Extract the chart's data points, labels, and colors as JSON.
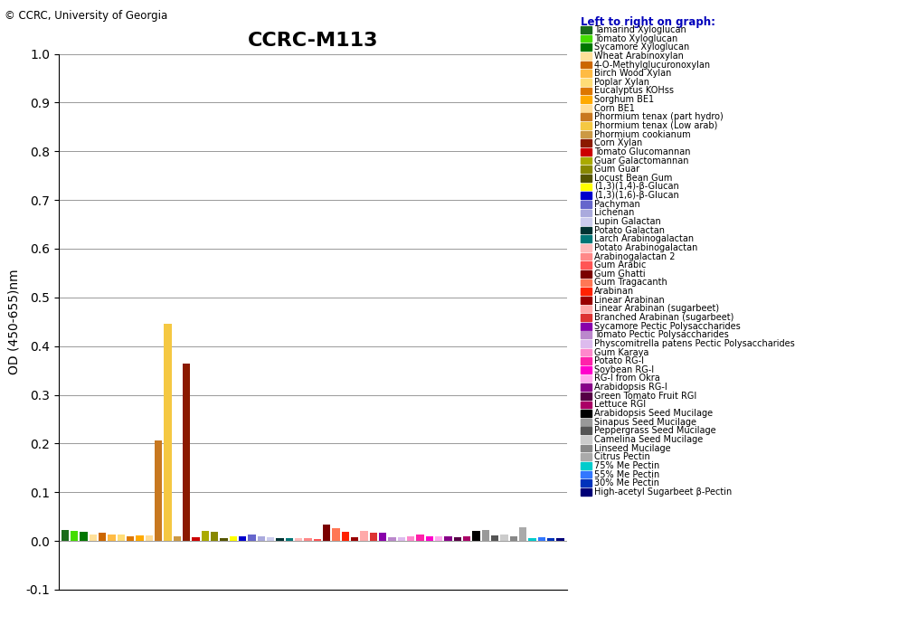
{
  "title": "CCRC-M113",
  "copyright": "© CCRC, University of Georgia",
  "ylabel": "OD (450-655)nm",
  "legend_title": "Left to right on graph:",
  "ylim": [
    -0.1,
    1.0
  ],
  "yticks": [
    -0.1,
    0.0,
    0.1,
    0.2,
    0.3,
    0.4,
    0.5,
    0.6,
    0.7,
    0.8,
    0.9,
    1.0
  ],
  "bars": [
    {
      "label": "Tamarind Xyloglucan",
      "value": 0.022,
      "color": "#1a6b1a"
    },
    {
      "label": "Tomato Xyloglucan",
      "value": 0.02,
      "color": "#44dd00"
    },
    {
      "label": "Sycamore Xyloglucan",
      "value": 0.018,
      "color": "#007700"
    },
    {
      "label": "Wheat Arabinoxylan",
      "value": 0.013,
      "color": "#ffe099"
    },
    {
      "label": "4-O-Methylglucuronoxylan",
      "value": 0.016,
      "color": "#cc6600"
    },
    {
      "label": "Birch Wood Xylan",
      "value": 0.013,
      "color": "#ffbb44"
    },
    {
      "label": "Poplar Xylan",
      "value": 0.013,
      "color": "#ffdd77"
    },
    {
      "label": "Eucalyptus KOHss",
      "value": 0.01,
      "color": "#dd7700"
    },
    {
      "label": "Sorghum BE1",
      "value": 0.012,
      "color": "#ffaa00"
    },
    {
      "label": "Corn BE1",
      "value": 0.011,
      "color": "#ffdd99"
    },
    {
      "label": "Phormium tenax (part hydro)",
      "value": 0.207,
      "color": "#c87820"
    },
    {
      "label": "Phormium tenax (Low arab)",
      "value": 0.446,
      "color": "#f5c842"
    },
    {
      "label": "Phormium cookianum",
      "value": 0.01,
      "color": "#cc9944"
    },
    {
      "label": "Corn Xylan",
      "value": 0.365,
      "color": "#8b1a00"
    },
    {
      "label": "Tomato Glucomannan",
      "value": 0.008,
      "color": "#cc0000"
    },
    {
      "label": "Guar Galactomannan",
      "value": 0.02,
      "color": "#aaaa00"
    },
    {
      "label": "Gum Guar",
      "value": 0.018,
      "color": "#888800"
    },
    {
      "label": "Locust Bean Gum",
      "value": 0.005,
      "color": "#555500"
    },
    {
      "label": "(1,3)(1,4)-β-Glucan",
      "value": 0.01,
      "color": "#ffff00"
    },
    {
      "label": "(1,3)(1,6)-β-Glucan",
      "value": 0.01,
      "color": "#0000cc"
    },
    {
      "label": "Pachyman",
      "value": 0.013,
      "color": "#6666cc"
    },
    {
      "label": "Lichenan",
      "value": 0.01,
      "color": "#aaaadd"
    },
    {
      "label": "Lupin Galactan",
      "value": 0.008,
      "color": "#ccccee"
    },
    {
      "label": "Potato Galactan",
      "value": 0.005,
      "color": "#003333"
    },
    {
      "label": "Larch Arabinogalactan",
      "value": 0.006,
      "color": "#007777"
    },
    {
      "label": "Potato Arabinogalactan",
      "value": 0.005,
      "color": "#ffbbbb"
    },
    {
      "label": "Arabinogalactan 2",
      "value": 0.005,
      "color": "#ff8888"
    },
    {
      "label": "Gum Arabic",
      "value": 0.004,
      "color": "#ff5555"
    },
    {
      "label": "Gum Ghatti",
      "value": 0.034,
      "color": "#7b0000"
    },
    {
      "label": "Gum Tragacanth",
      "value": 0.027,
      "color": "#ff7755"
    },
    {
      "label": "Arabinan",
      "value": 0.019,
      "color": "#ff2200"
    },
    {
      "label": "Linear Arabinan",
      "value": 0.008,
      "color": "#990000"
    },
    {
      "label": "Linear Arabinan (sugarbeet)",
      "value": 0.02,
      "color": "#ffaaaa"
    },
    {
      "label": "Branched Arabinan (sugarbeet)",
      "value": 0.017,
      "color": "#dd3333"
    },
    {
      "label": "Sycamore Pectic Polysaccharides",
      "value": 0.016,
      "color": "#8800aa"
    },
    {
      "label": "Tomato Pectic Polysaccharides",
      "value": 0.008,
      "color": "#bb88cc"
    },
    {
      "label": "Physcomitrella patens Pectic Polysaccharides",
      "value": 0.008,
      "color": "#ddbbee"
    },
    {
      "label": "Gum Karaya",
      "value": 0.01,
      "color": "#ff88cc"
    },
    {
      "label": "Potato RG-I",
      "value": 0.014,
      "color": "#ff22aa"
    },
    {
      "label": "Soybean RG-I",
      "value": 0.009,
      "color": "#ff00cc"
    },
    {
      "label": "RG-I from Okra",
      "value": 0.01,
      "color": "#ffaaee"
    },
    {
      "label": "Arabidopsis RG-I",
      "value": 0.01,
      "color": "#880088"
    },
    {
      "label": "Green Tomato Fruit RGI",
      "value": 0.007,
      "color": "#550044"
    },
    {
      "label": "Lettuce RGI",
      "value": 0.01,
      "color": "#aa0066"
    },
    {
      "label": "Arabidopsis Seed Mucilage",
      "value": 0.021,
      "color": "#000000"
    },
    {
      "label": "Sinapus Seed Mucilage",
      "value": 0.022,
      "color": "#999999"
    },
    {
      "label": "Peppergrass Seed Mucilage",
      "value": 0.012,
      "color": "#555555"
    },
    {
      "label": "Camelina Seed Mucilage",
      "value": 0.013,
      "color": "#cccccc"
    },
    {
      "label": "Linseed Mucilage",
      "value": 0.01,
      "color": "#888888"
    },
    {
      "label": "Citrus Pectin",
      "value": 0.028,
      "color": "#aaaaaa"
    },
    {
      "label": "75% Me Pectin",
      "value": 0.005,
      "color": "#00cccc"
    },
    {
      "label": "55% Me Pectin",
      "value": 0.008,
      "color": "#3377ff"
    },
    {
      "label": "30% Me Pectin",
      "value": 0.006,
      "color": "#0033bb"
    },
    {
      "label": "High-acetyl Sugarbeet β-Pectin",
      "value": 0.005,
      "color": "#000077"
    }
  ]
}
